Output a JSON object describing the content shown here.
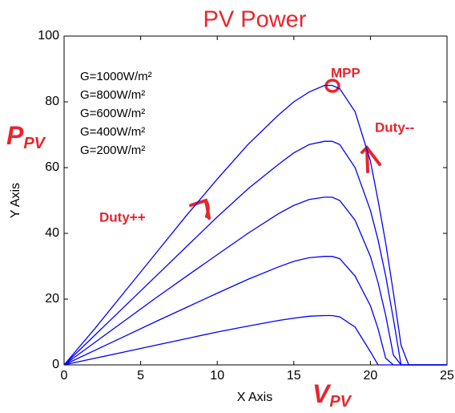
{
  "chart_data": {
    "type": "line",
    "title": "PV Power",
    "xlabel": "X Axis",
    "ylabel": "Y Axis",
    "x": [
      0,
      2,
      4,
      6,
      8,
      10,
      12,
      14,
      15,
      16,
      17,
      17.5,
      18,
      19,
      20,
      20.5,
      21,
      21.5,
      22,
      22.5,
      25
    ],
    "series": [
      {
        "name": "G=1000W/m²",
        "color": "#0000ff",
        "values": [
          0,
          11,
          22.5,
          34,
          45.5,
          56.5,
          67,
          76,
          80,
          83,
          85,
          85,
          84,
          77,
          62,
          50,
          37,
          22,
          6,
          0,
          0
        ]
      },
      {
        "name": "G=800W/m²",
        "color": "#0000ff",
        "values": [
          0,
          9,
          18,
          27,
          36,
          45,
          53.5,
          61,
          64.5,
          67,
          68,
          68,
          67,
          60,
          47,
          38,
          27,
          14,
          0,
          0,
          0
        ]
      },
      {
        "name": "G=600W/m²",
        "color": "#0000ff",
        "values": [
          0,
          6.8,
          13.6,
          20.4,
          27,
          33.5,
          40,
          46,
          48.5,
          50.3,
          51,
          51,
          50,
          44,
          33,
          25,
          15,
          3,
          0,
          0,
          0
        ]
      },
      {
        "name": "G=400W/m²",
        "color": "#0000ff",
        "values": [
          0,
          4.4,
          8.8,
          13.2,
          17.5,
          21.8,
          26,
          29.8,
          31.5,
          32.6,
          33,
          33,
          32.3,
          27,
          18,
          11,
          2,
          0,
          0,
          0,
          0
        ]
      },
      {
        "name": "G=200W/m²",
        "color": "#0000ff",
        "values": [
          0,
          2,
          4,
          6,
          8,
          10,
          11.8,
          13.5,
          14.2,
          14.8,
          15,
          15,
          14.6,
          11.5,
          4,
          0,
          0,
          0,
          0,
          0,
          0
        ]
      }
    ],
    "xlim": [
      0,
      25
    ],
    "xticks": [
      0,
      5,
      10,
      15,
      20,
      25
    ],
    "ylim": [
      0,
      100
    ],
    "yticks": [
      0,
      20,
      40,
      60,
      80,
      100
    ],
    "annotations": {
      "mpp": "MPP",
      "duty_down": "Duty--",
      "duty_up": "Duty++",
      "power_symbol": "P",
      "power_sub": "PV",
      "voltage_symbol": "V",
      "voltage_sub": "PV"
    }
  }
}
